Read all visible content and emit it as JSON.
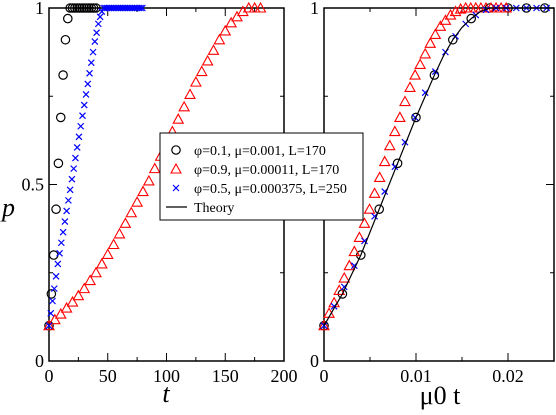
{
  "chart_data": [
    {
      "type": "scatter",
      "xlabel": "t",
      "ylabel": "p",
      "xlim": [
        0,
        200
      ],
      "ylim": [
        0,
        1
      ],
      "x_ticks": [
        "0",
        "50",
        "100",
        "150",
        "200"
      ],
      "y_ticks": [
        "0",
        "0.5",
        "1"
      ],
      "legend_placement": "center-right",
      "series": [
        {
          "name": "φ=0.1, μ=0.001, L=170",
          "marker": "circle",
          "color": "#000000",
          "x": [
            0,
            2,
            4,
            6,
            8,
            10,
            12,
            14,
            16,
            18,
            20,
            22,
            24,
            26,
            28,
            30,
            32,
            34,
            36,
            38,
            40
          ],
          "y": [
            0.1,
            0.19,
            0.3,
            0.43,
            0.56,
            0.69,
            0.81,
            0.91,
            0.97,
            1.0,
            1.0,
            1.0,
            1.0,
            1.0,
            1.0,
            1.0,
            1.0,
            1.0,
            1.0,
            1.0,
            1.0
          ]
        },
        {
          "name": "φ=0.9, μ=0.00011, L=170",
          "marker": "triangle",
          "color": "#ff0000",
          "x": [
            0,
            5,
            10,
            15,
            20,
            25,
            30,
            35,
            40,
            45,
            50,
            55,
            60,
            65,
            70,
            75,
            80,
            85,
            90,
            95,
            100,
            105,
            110,
            115,
            120,
            125,
            130,
            135,
            140,
            145,
            150,
            155,
            160,
            165,
            170,
            175,
            180
          ],
          "y": [
            0.1,
            0.117,
            0.133,
            0.15,
            0.167,
            0.185,
            0.205,
            0.228,
            0.25,
            0.275,
            0.302,
            0.33,
            0.36,
            0.39,
            0.42,
            0.45,
            0.48,
            0.51,
            0.545,
            0.58,
            0.615,
            0.65,
            0.685,
            0.72,
            0.755,
            0.79,
            0.82,
            0.85,
            0.88,
            0.91,
            0.935,
            0.958,
            0.975,
            0.99,
            1.0,
            1.0,
            1.0
          ]
        },
        {
          "name": "φ=0.5, μ=0.000375, L=250",
          "marker": "x",
          "color": "#0000ff",
          "x": [
            0,
            1.5,
            3,
            4.5,
            6,
            7.5,
            9,
            10.5,
            12,
            13.5,
            15,
            16.5,
            18,
            19.5,
            21,
            22.5,
            24,
            25.5,
            27,
            28.5,
            30,
            31.5,
            33,
            34.5,
            36,
            37.5,
            39,
            40.5,
            42,
            43.5,
            45,
            46.5,
            48,
            49.5,
            51,
            52.5,
            54,
            55.5,
            57,
            58.5,
            60,
            61.5,
            63,
            64.5,
            66,
            67.5,
            69,
            70.5,
            72,
            73.5,
            75,
            76.5,
            78,
            79.5
          ],
          "y": [
            0.1,
            0.135,
            0.17,
            0.205,
            0.24,
            0.275,
            0.305,
            0.335,
            0.365,
            0.395,
            0.425,
            0.455,
            0.485,
            0.515,
            0.545,
            0.575,
            0.605,
            0.635,
            0.665,
            0.695,
            0.725,
            0.755,
            0.785,
            0.815,
            0.845,
            0.875,
            0.905,
            0.93,
            0.955,
            0.975,
            0.99,
            1.0,
            1.0,
            1.0,
            1.0,
            1.0,
            1.0,
            1.0,
            1.0,
            1.0,
            1.0,
            1.0,
            1.0,
            1.0,
            1.0,
            1.0,
            1.0,
            1.0,
            1.0,
            1.0,
            1.0,
            1.0,
            1.0,
            1.0
          ]
        },
        {
          "name": "Theory",
          "marker": "line",
          "color": "#000000"
        }
      ]
    },
    {
      "type": "scatter",
      "xlabel": "μ0 t",
      "xlim": [
        0,
        0.025
      ],
      "ylim": [
        0,
        1
      ],
      "x_ticks": [
        "0",
        "0.01",
        "0.02"
      ],
      "y_ticks": [
        "0",
        "0.5",
        "1"
      ],
      "series": [
        {
          "marker": "circle",
          "color": "#000000",
          "x": [
            0,
            0.002,
            0.004,
            0.006,
            0.008,
            0.01,
            0.012,
            0.014,
            0.016,
            0.018,
            0.02,
            0.022,
            0.024
          ],
          "y": [
            0.1,
            0.19,
            0.3,
            0.43,
            0.56,
            0.69,
            0.81,
            0.91,
            0.97,
            1.0,
            1.0,
            1.0,
            1.0
          ]
        },
        {
          "marker": "triangle",
          "color": "#ff0000",
          "x": [
            0,
            0.00055,
            0.0011,
            0.00165,
            0.0022,
            0.00275,
            0.0033,
            0.00385,
            0.0044,
            0.00495,
            0.0055,
            0.00605,
            0.0066,
            0.00715,
            0.0077,
            0.00825,
            0.0088,
            0.00935,
            0.0099,
            0.01045,
            0.011,
            0.01155,
            0.0121,
            0.01265,
            0.0132,
            0.01375,
            0.0143,
            0.01485,
            0.0154,
            0.01595,
            0.0165,
            0.01705,
            0.0176,
            0.01815,
            0.0187,
            0.01925,
            0.0198
          ],
          "y": [
            0.1,
            0.135,
            0.165,
            0.2,
            0.235,
            0.27,
            0.31,
            0.35,
            0.39,
            0.43,
            0.475,
            0.52,
            0.565,
            0.61,
            0.65,
            0.69,
            0.735,
            0.775,
            0.81,
            0.84,
            0.87,
            0.9,
            0.925,
            0.948,
            0.965,
            0.98,
            0.99,
            0.997,
            1.0,
            1.0,
            1.0,
            1.0,
            1.0,
            1.0,
            1.0,
            1.0,
            1.0
          ]
        },
        {
          "marker": "x",
          "color": "#0000ff",
          "x": [
            0,
            0.0011,
            0.0022,
            0.0033,
            0.0044,
            0.0055,
            0.0066,
            0.0077,
            0.0088,
            0.0099,
            0.011,
            0.0121,
            0.0132,
            0.0143,
            0.0154,
            0.0165,
            0.0176,
            0.0187,
            0.0198,
            0.0209,
            0.022,
            0.0231,
            0.0242
          ],
          "y": [
            0.1,
            0.155,
            0.21,
            0.27,
            0.34,
            0.41,
            0.48,
            0.55,
            0.62,
            0.69,
            0.76,
            0.82,
            0.875,
            0.92,
            0.955,
            0.98,
            0.995,
            1.0,
            1.0,
            1.0,
            1.0,
            1.0,
            1.0
          ]
        },
        {
          "marker": "line",
          "color": "#000000",
          "x": [
            0,
            0.001,
            0.002,
            0.003,
            0.004,
            0.005,
            0.006,
            0.007,
            0.008,
            0.009,
            0.01,
            0.011,
            0.012,
            0.013,
            0.014,
            0.015,
            0.016,
            0.017,
            0.018,
            0.019,
            0.025
          ],
          "y": [
            0.1,
            0.145,
            0.19,
            0.245,
            0.3,
            0.365,
            0.43,
            0.495,
            0.56,
            0.625,
            0.69,
            0.75,
            0.81,
            0.865,
            0.91,
            0.945,
            0.97,
            0.99,
            1.0,
            1.0,
            1.0
          ]
        }
      ]
    }
  ]
}
